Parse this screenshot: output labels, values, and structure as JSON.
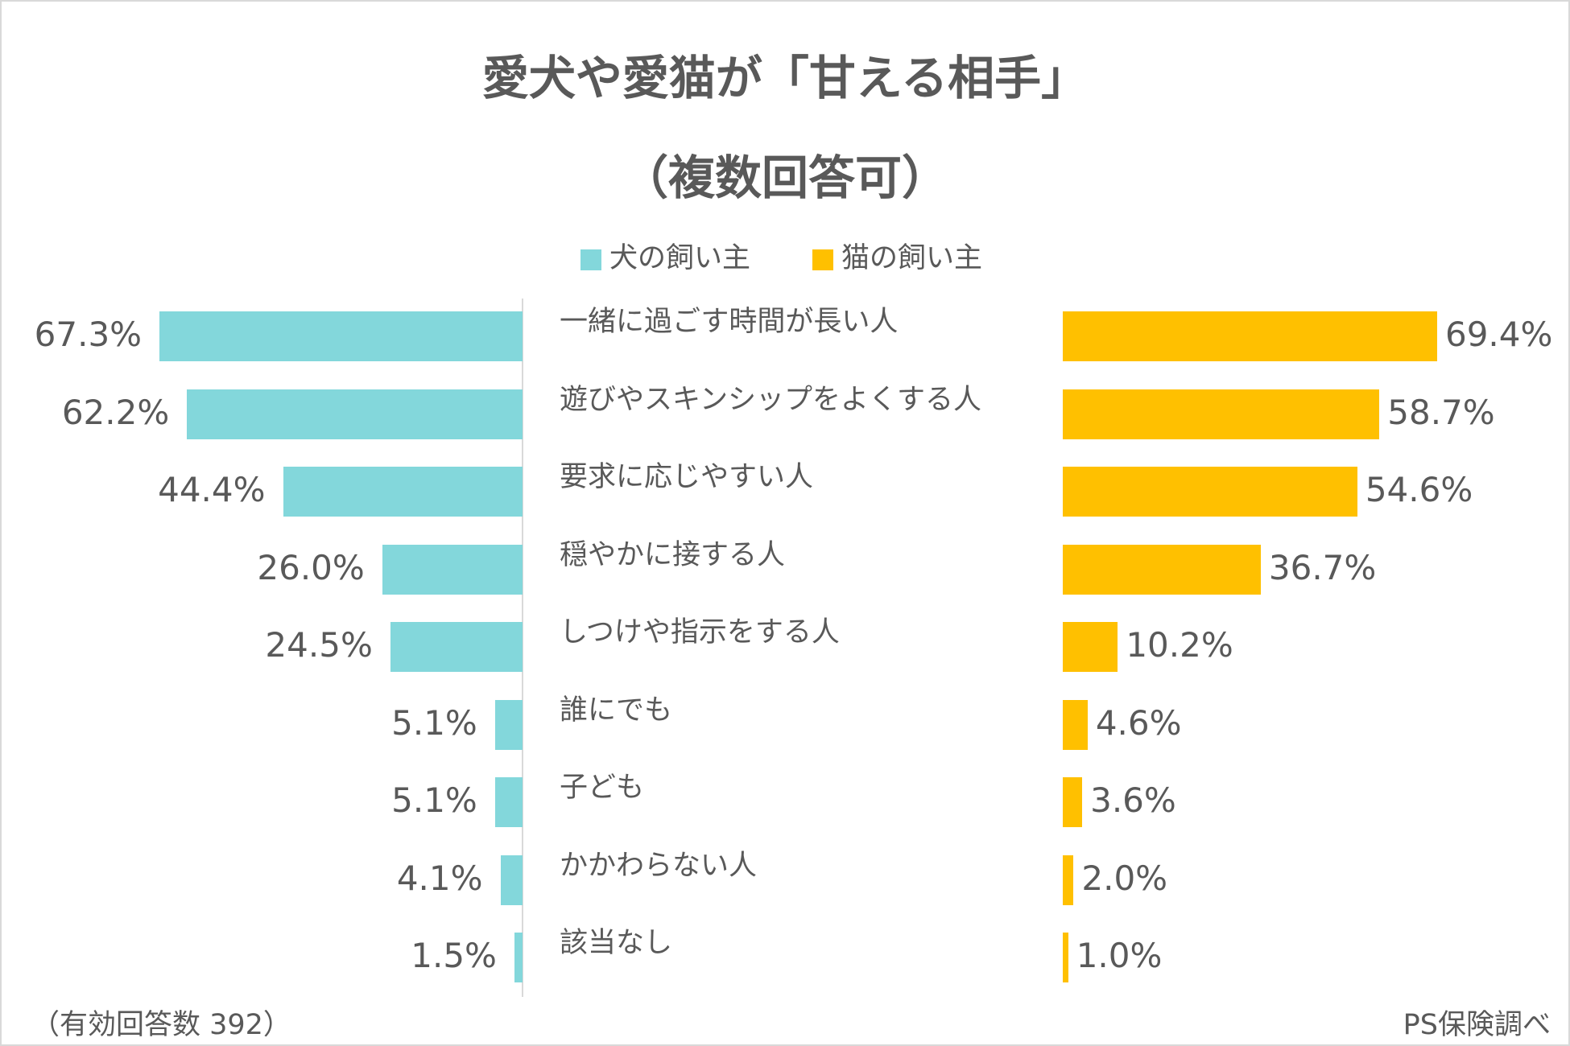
{
  "chart_data": {
    "type": "bar",
    "orientation": "horizontal-butterfly",
    "title": "愛犬や愛猫が「甘える相手」",
    "subtitle": "（複数回答可）",
    "categories": [
      "一緒に過ごす時間が長い人",
      "遊びやスキンシップをよくする人",
      "要求に応じやすい人",
      "穏やかに接する人",
      "しつけや指示をする人",
      "誰にでも",
      "子ども",
      "かかわらない人",
      "該当なし"
    ],
    "series": [
      {
        "name": "犬の飼い主",
        "color": "#83D7DB",
        "values": [
          67.3,
          62.2,
          44.4,
          26.0,
          24.5,
          5.1,
          5.1,
          4.1,
          1.5
        ],
        "labels": [
          "67.3%",
          "62.2%",
          "44.4%",
          "26.0%",
          "24.5%",
          "5.1%",
          "5.1%",
          "4.1%",
          "1.5%"
        ]
      },
      {
        "name": "猫の飼い主",
        "color": "#FFC000",
        "values": [
          69.4,
          58.7,
          54.6,
          36.7,
          10.2,
          4.6,
          3.6,
          2.0,
          1.0
        ],
        "labels": [
          "69.4%",
          "58.7%",
          "54.6%",
          "36.7%",
          "10.2%",
          "4.6%",
          "3.6%",
          "2.0%",
          "1.0%"
        ]
      }
    ],
    "legend": "top-center",
    "grid": false
  },
  "footer": {
    "sample": "（有効回答数 392）",
    "source": "PS保険調べ"
  }
}
